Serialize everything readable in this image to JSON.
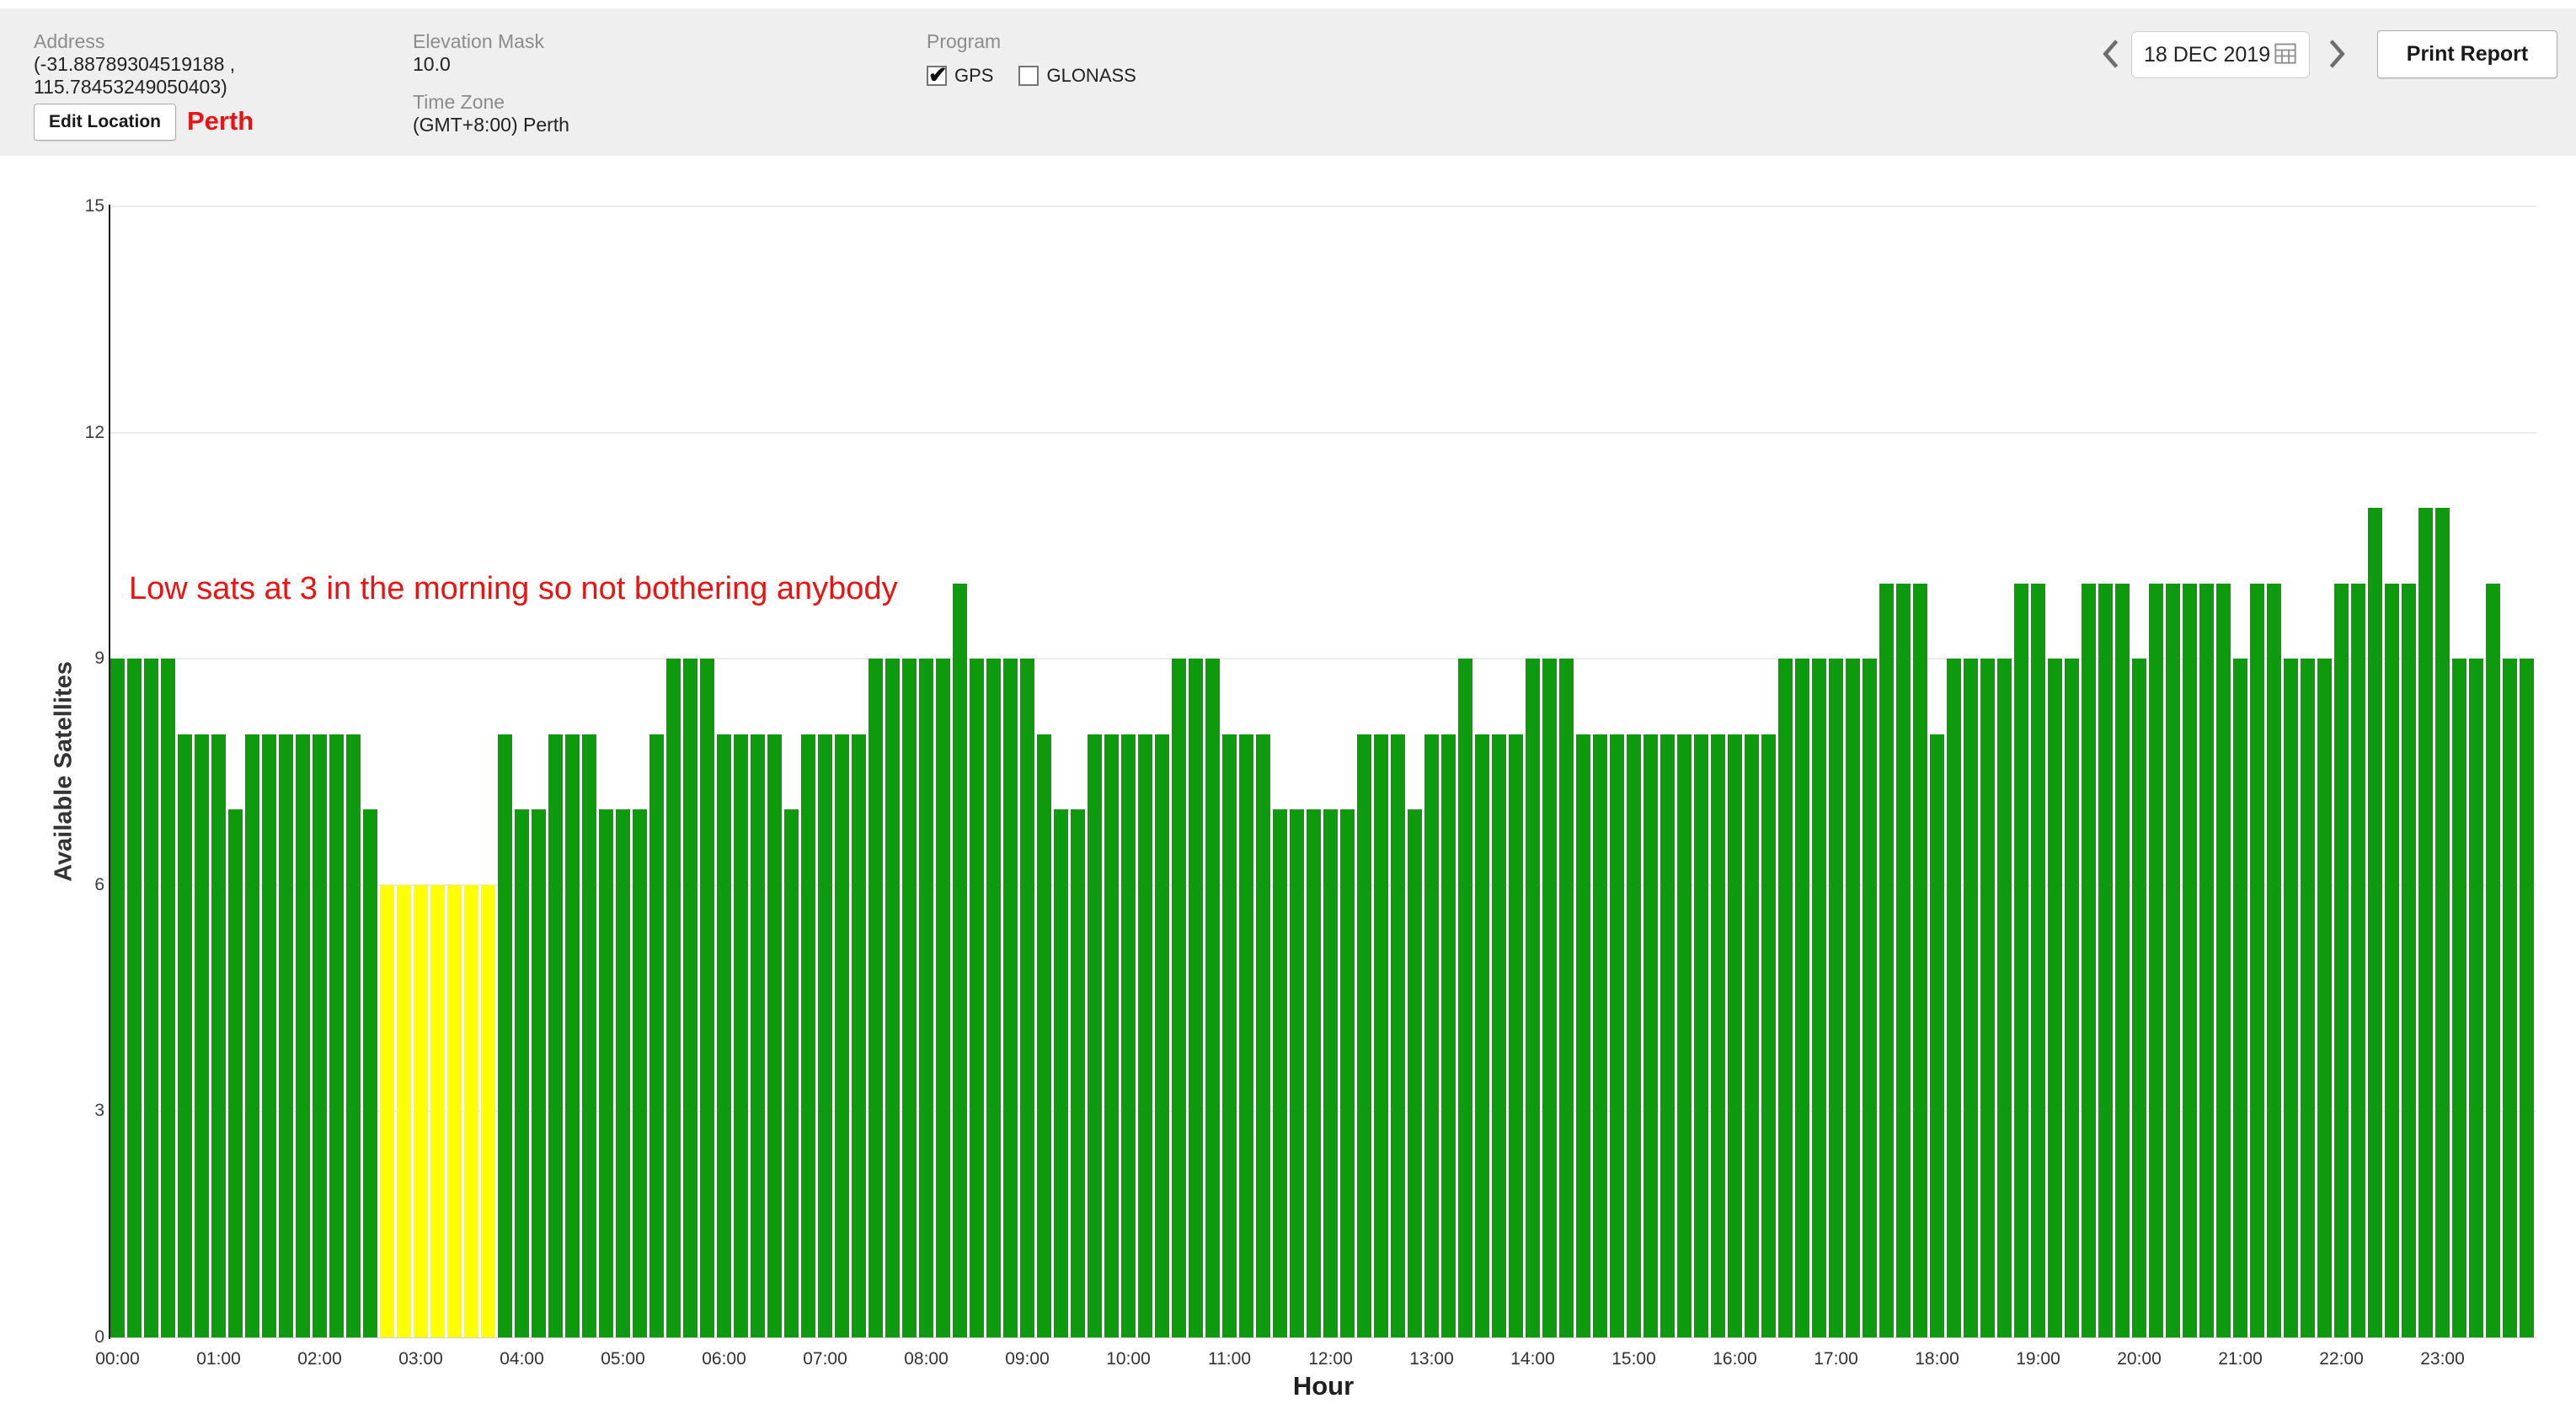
{
  "header": {
    "address_label": "Address",
    "address_line1": "(-31.88789304519188 ,",
    "address_line2": "115.78453249050403)",
    "edit_location_button": "Edit Location",
    "location_note": "Perth",
    "elevation_mask_label": "Elevation Mask",
    "elevation_mask_value": "10.0",
    "timezone_label": "Time Zone",
    "timezone_value": "(GMT+8:00) Perth",
    "program_label": "Program",
    "programs": [
      {
        "label": "GPS",
        "checked": true
      },
      {
        "label": "GLONASS",
        "checked": false
      }
    ],
    "date_value": "18 DEC 2019",
    "print_button": "Print Report",
    "icons": {
      "prev": "chevron-left",
      "next": "chevron-right",
      "calendar": "calendar-grid"
    }
  },
  "chart_data": {
    "type": "bar",
    "title": "",
    "xlabel": "Hour",
    "ylabel": "Available Satellites",
    "ylim": [
      0,
      15
    ],
    "yticks": [
      0,
      3,
      6,
      9,
      12,
      15
    ],
    "x_tick_labels": [
      "00:00",
      "01:00",
      "02:00",
      "03:00",
      "04:00",
      "05:00",
      "06:00",
      "07:00",
      "08:00",
      "09:00",
      "10:00",
      "11:00",
      "12:00",
      "13:00",
      "14:00",
      "15:00",
      "16:00",
      "17:00",
      "18:00",
      "19:00",
      "20:00",
      "21:00",
      "22:00",
      "23:00"
    ],
    "x_start": "00:00",
    "x_step_minutes": 10,
    "values": [
      9,
      9,
      9,
      9,
      8,
      8,
      8,
      7,
      8,
      8,
      8,
      8,
      8,
      8,
      8,
      7,
      6,
      6,
      6,
      6,
      6,
      6,
      6,
      8,
      7,
      7,
      8,
      8,
      8,
      7,
      7,
      7,
      8,
      9,
      9,
      9,
      8,
      8,
      8,
      8,
      7,
      8,
      8,
      8,
      8,
      9,
      9,
      9,
      9,
      9,
      10,
      9,
      9,
      9,
      9,
      8,
      7,
      7,
      8,
      8,
      8,
      8,
      8,
      9,
      9,
      9,
      8,
      8,
      8,
      7,
      7,
      7,
      7,
      7,
      8,
      8,
      8,
      7,
      8,
      8,
      9,
      8,
      8,
      8,
      9,
      9,
      9,
      8,
      8,
      8,
      8,
      8,
      8,
      8,
      8,
      8,
      8,
      8,
      8,
      9,
      9,
      9,
      9,
      9,
      9,
      10,
      10,
      10,
      8,
      9,
      9,
      9,
      9,
      10,
      10,
      9,
      9,
      10,
      10,
      10,
      9,
      10,
      10,
      10,
      10,
      10,
      9,
      10,
      10,
      9,
      9,
      9,
      10,
      10,
      11,
      10,
      10,
      11,
      11,
      9,
      9,
      10,
      9,
      9
    ],
    "low_threshold": 6,
    "colors": {
      "normal_bar": "#0d9b0d",
      "low_bar": "#ffff00"
    },
    "grid": "horizontal",
    "legend": "none",
    "annotations": [
      {
        "text": "Low sats at 3 in the morning so not bothering anybody",
        "color": "#ee1111",
        "x": "00:10",
        "y": 9.8
      }
    ]
  }
}
